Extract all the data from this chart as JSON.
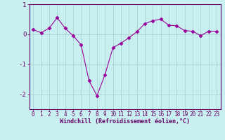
{
  "x": [
    0,
    1,
    2,
    3,
    4,
    5,
    6,
    7,
    8,
    9,
    10,
    11,
    12,
    13,
    14,
    15,
    16,
    17,
    18,
    19,
    20,
    21,
    22,
    23
  ],
  "y": [
    0.15,
    0.05,
    0.2,
    0.55,
    0.2,
    -0.05,
    -0.35,
    -1.55,
    -2.05,
    -1.35,
    -0.45,
    -0.3,
    -0.12,
    0.08,
    0.35,
    0.45,
    0.5,
    0.3,
    0.28,
    0.12,
    0.1,
    -0.05,
    0.1,
    0.1
  ],
  "line_color": "#990099",
  "marker": "D",
  "markersize": 2.5,
  "bg_color": "#c8f0f0",
  "grid_color": "#b0d8d8",
  "xlabel": "Windchill (Refroidissement éolien,°C)",
  "ylabel": "",
  "title": "",
  "xlim": [
    -0.5,
    23.5
  ],
  "ylim": [
    -2.5,
    1.0
  ],
  "yticks": [
    1,
    0,
    -1,
    -2
  ],
  "ytick_labels": [
    "1",
    "0",
    "-1",
    "-2"
  ],
  "xticks": [
    0,
    1,
    2,
    3,
    4,
    5,
    6,
    7,
    8,
    9,
    10,
    11,
    12,
    13,
    14,
    15,
    16,
    17,
    18,
    19,
    20,
    21,
    22,
    23
  ],
  "xtick_labels": [
    "0",
    "1",
    "2",
    "3",
    "4",
    "5",
    "6",
    "7",
    "8",
    "9",
    "10",
    "11",
    "12",
    "13",
    "14",
    "15",
    "16",
    "17",
    "18",
    "19",
    "20",
    "21",
    "22",
    "23"
  ],
  "xlabel_color": "#660066",
  "tick_color": "#660066",
  "axis_color": "#660066",
  "label_fontsize": 6.0,
  "tick_fontsize": 5.5
}
